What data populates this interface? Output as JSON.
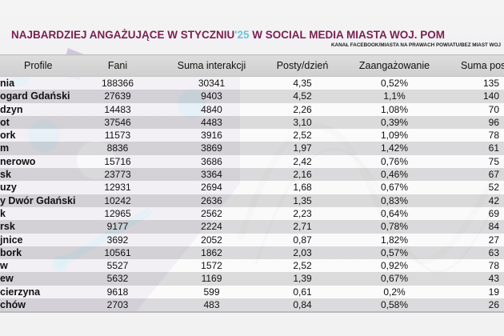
{
  "header": {
    "title_main": "NAJBARDZIEJ ANGAŻUJĄCE W STYCZNIU",
    "title_year": "'25",
    "title_rest": " W SOCIAL MEDIA MIASTA WOJ. POM",
    "subtitle": "KANAŁ FACEBOOK/MIASTA NA PRAWACH POWIATU/BEZ MIAST WOJ"
  },
  "colors": {
    "title": "#7b1f52",
    "year_accent": "#6cc3dc",
    "overlay_purple": "#9b7bb0",
    "blob_blue": "#7fcbe0"
  },
  "chart_data": {
    "type": "table",
    "columns": [
      "Profile",
      "Fani",
      "Suma interakcji",
      "Posty/dzień",
      "Zaangażowanie",
      "Suma pos"
    ],
    "rows": [
      [
        "nia",
        "188366",
        "30341",
        "4,35",
        "0,52%",
        "135"
      ],
      [
        "ogard Gdański",
        "27639",
        "9403",
        "4,52",
        "1,1%",
        "140"
      ],
      [
        "dzyn",
        "14483",
        "4840",
        "2,26",
        "1,08%",
        "70"
      ],
      [
        "ot",
        "37546",
        "4483",
        "3,10",
        "0,39%",
        "96"
      ],
      [
        "ork",
        "11573",
        "3916",
        "2,52",
        "1,09%",
        "78"
      ],
      [
        "m",
        "8836",
        "3869",
        "1,97",
        "1,42%",
        "61"
      ],
      [
        "nerowo",
        "15716",
        "3686",
        "2,42",
        "0,76%",
        "75"
      ],
      [
        "sk",
        "23773",
        "3364",
        "2,16",
        "0,46%",
        "67"
      ],
      [
        "uzy",
        "12931",
        "2694",
        "1,68",
        "0,67%",
        "52"
      ],
      [
        "y Dwór Gdański",
        "10242",
        "2636",
        "1,35",
        "0,83%",
        "42"
      ],
      [
        "k",
        "12965",
        "2562",
        "2,23",
        "0,64%",
        "69"
      ],
      [
        "rsk",
        "9177",
        "2224",
        "2,71",
        "0,78%",
        "84"
      ],
      [
        "jnice",
        "3692",
        "2052",
        "0,87",
        "1,82%",
        "27"
      ],
      [
        "bork",
        "10561",
        "1862",
        "2,03",
        "0,57%",
        "63"
      ],
      [
        "w",
        "5527",
        "1572",
        "2,52",
        "0,92%",
        "78"
      ],
      [
        "ew",
        "5632",
        "1169",
        "1,39",
        "0,67%",
        "43"
      ],
      [
        "cierzyna",
        "9618",
        "599",
        "0,61",
        "0,2%",
        "19"
      ],
      [
        "chów",
        "2703",
        "483",
        "0,84",
        "0,58%",
        "26"
      ]
    ]
  }
}
